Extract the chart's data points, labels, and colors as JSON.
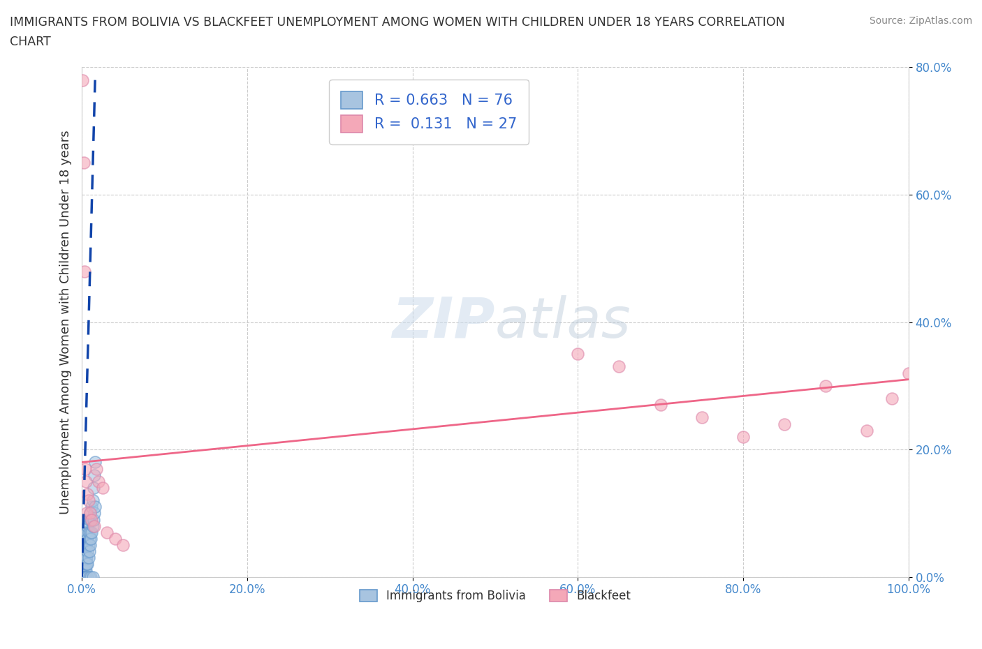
{
  "title_line1": "IMMIGRANTS FROM BOLIVIA VS BLACKFEET UNEMPLOYMENT AMONG WOMEN WITH CHILDREN UNDER 18 YEARS CORRELATION",
  "title_line2": "CHART",
  "source": "Source: ZipAtlas.com",
  "ylabel": "Unemployment Among Women with Children Under 18 years",
  "xlim": [
    0.0,
    1.0
  ],
  "ylim": [
    0.0,
    0.8
  ],
  "xticks": [
    0.0,
    0.2,
    0.4,
    0.6,
    0.8,
    1.0
  ],
  "yticks": [
    0.0,
    0.2,
    0.4,
    0.6,
    0.8
  ],
  "xtick_labels": [
    "0.0%",
    "20.0%",
    "40.0%",
    "60.0%",
    "80.0%",
    "100.0%"
  ],
  "ytick_labels": [
    "0.0%",
    "20.0%",
    "40.0%",
    "60.0%",
    "80.0%"
  ],
  "bolivia_color": "#a8c4e0",
  "bolivia_edge_color": "#6699cc",
  "blackfeet_color": "#f4a8b8",
  "blackfeet_edge_color": "#dd88aa",
  "bolivia_line_color": "#1144aa",
  "blackfeet_line_color": "#ee6688",
  "watermark_zip": "ZIP",
  "watermark_atlas": "atlas",
  "legend_R1": "0.663",
  "legend_N1": "76",
  "legend_R2": "0.131",
  "legend_N2": "27",
  "legend_label1": "Immigrants from Bolivia",
  "legend_label2": "Blackfeet",
  "background_color": "#ffffff",
  "grid_color": "#cccccc",
  "tick_color": "#4488cc",
  "title_color": "#333333",
  "ylabel_color": "#333333",
  "legend_text_color": "#3366cc",
  "bolivia_scatter_x": [
    0.001,
    0.001,
    0.001,
    0.002,
    0.002,
    0.002,
    0.002,
    0.003,
    0.003,
    0.003,
    0.003,
    0.003,
    0.004,
    0.004,
    0.004,
    0.004,
    0.005,
    0.005,
    0.005,
    0.005,
    0.005,
    0.006,
    0.006,
    0.006,
    0.006,
    0.007,
    0.007,
    0.007,
    0.007,
    0.008,
    0.008,
    0.008,
    0.009,
    0.009,
    0.009,
    0.01,
    0.01,
    0.01,
    0.011,
    0.011,
    0.012,
    0.012,
    0.013,
    0.013,
    0.014,
    0.014,
    0.015,
    0.015,
    0.016,
    0.016,
    0.001,
    0.001,
    0.001,
    0.001,
    0.001,
    0.001,
    0.001,
    0.001,
    0.001,
    0.001,
    0.001,
    0.001,
    0.001,
    0.001,
    0.001,
    0.002,
    0.002,
    0.002,
    0.002,
    0.003,
    0.004,
    0.005,
    0.007,
    0.009,
    0.011,
    0.013
  ],
  "bolivia_scatter_y": [
    0.0,
    0.01,
    0.02,
    0.0,
    0.01,
    0.02,
    0.03,
    0.0,
    0.01,
    0.02,
    0.03,
    0.04,
    0.01,
    0.02,
    0.03,
    0.05,
    0.01,
    0.02,
    0.03,
    0.05,
    0.07,
    0.02,
    0.03,
    0.05,
    0.07,
    0.02,
    0.04,
    0.06,
    0.08,
    0.03,
    0.05,
    0.07,
    0.04,
    0.06,
    0.09,
    0.05,
    0.07,
    0.1,
    0.06,
    0.09,
    0.07,
    0.11,
    0.08,
    0.12,
    0.09,
    0.14,
    0.1,
    0.16,
    0.11,
    0.18,
    0.0,
    0.0,
    0.0,
    0.0,
    0.0,
    0.0,
    0.0,
    0.0,
    0.0,
    0.0,
    0.0,
    0.0,
    0.0,
    0.0,
    0.0,
    0.0,
    0.0,
    0.0,
    0.0,
    0.0,
    0.0,
    0.0,
    0.0,
    0.0,
    0.0,
    0.0
  ],
  "blackfeet_scatter_x": [
    0.001,
    0.002,
    0.003,
    0.004,
    0.005,
    0.006,
    0.007,
    0.008,
    0.01,
    0.012,
    0.015,
    0.018,
    0.02,
    0.025,
    0.03,
    0.04,
    0.05,
    0.6,
    0.65,
    0.7,
    0.75,
    0.8,
    0.85,
    0.9,
    0.95,
    0.98,
    1.0
  ],
  "blackfeet_scatter_y": [
    0.78,
    0.65,
    0.48,
    0.17,
    0.15,
    0.1,
    0.13,
    0.12,
    0.1,
    0.09,
    0.08,
    0.17,
    0.15,
    0.14,
    0.07,
    0.06,
    0.05,
    0.35,
    0.33,
    0.27,
    0.25,
    0.22,
    0.24,
    0.3,
    0.23,
    0.28,
    0.32
  ],
  "bolivia_regline_x": [
    0.0,
    0.016
  ],
  "bolivia_regline_y": [
    0.0,
    0.78
  ],
  "blackfeet_regline_x": [
    0.0,
    1.0
  ],
  "blackfeet_regline_y": [
    0.18,
    0.31
  ]
}
